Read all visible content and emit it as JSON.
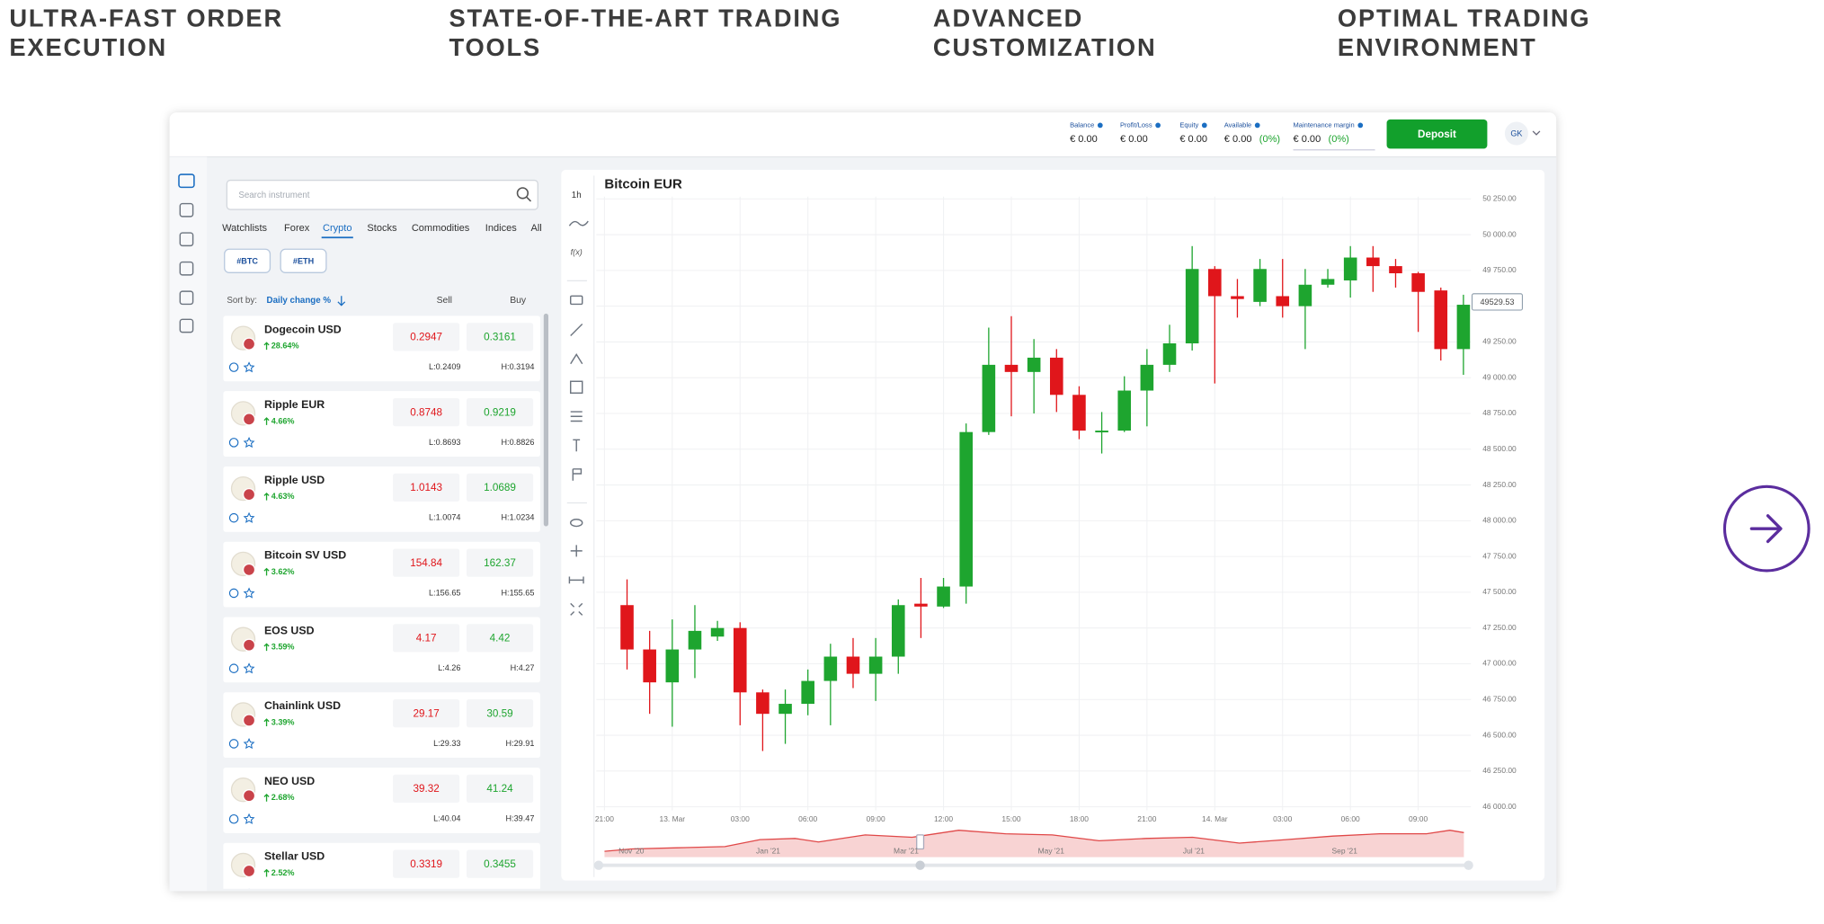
{
  "features": [
    {
      "lines": [
        "ULTRA-FAST ORDER",
        "EXECUTION"
      ]
    },
    {
      "lines": [
        "STATE-OF-THE-ART TRADING",
        "TOOLS"
      ]
    },
    {
      "lines": [
        "ADVANCED",
        "CUSTOMIZATION"
      ]
    },
    {
      "lines": [
        "OPTIMAL TRADING",
        "ENVIRONMENT"
      ]
    }
  ],
  "account": {
    "items": [
      {
        "label": "Balance",
        "value": "€ 0.00"
      },
      {
        "label": "Profit/Loss",
        "value": "€ 0.00"
      },
      {
        "label": "Equity",
        "value": "€ 0.00"
      },
      {
        "label": "Available",
        "value": "€ 0.00",
        "extra": "(0%)"
      },
      {
        "label": "Maintenance margin",
        "value": "€ 0.00",
        "extra": "(0%)"
      }
    ],
    "deposit": "Deposit",
    "user": "GK"
  },
  "instruments": {
    "search_placeholder": "Search instrument",
    "tabs": [
      "Watchlists",
      "Forex",
      "Crypto",
      "Stocks",
      "Commodities",
      "Indices",
      "All"
    ],
    "active_tab": 2,
    "tags": [
      "#BTC",
      "#ETH"
    ],
    "sort_label": "Sort by:",
    "sort_field": "Daily change %",
    "sell": "Sell",
    "buy": "Buy",
    "rows": [
      {
        "name": "Dogecoin USD",
        "change": "28.64%",
        "sell": "0.2947",
        "buy": "0.3161",
        "low": "L:0.2409",
        "high": "H:0.3194"
      },
      {
        "name": "Ripple EUR",
        "change": "4.66%",
        "sell": "0.8748",
        "buy": "0.9219",
        "low": "L:0.8693",
        "high": "H:0.8826"
      },
      {
        "name": "Ripple USD",
        "change": "4.63%",
        "sell": "1.0143",
        "buy": "1.0689",
        "low": "L:1.0074",
        "high": "H:1.0234"
      },
      {
        "name": "Bitcoin SV USD",
        "change": "3.62%",
        "sell": "154.84",
        "buy": "162.37",
        "low": "L:156.65",
        "high": "H:155.65"
      },
      {
        "name": "EOS USD",
        "change": "3.59%",
        "sell": "4.17",
        "buy": "4.42",
        "low": "L:4.26",
        "high": "H:4.27"
      },
      {
        "name": "Chainlink USD",
        "change": "3.39%",
        "sell": "29.17",
        "buy": "30.59",
        "low": "L:29.33",
        "high": "H:29.91"
      },
      {
        "name": "NEO USD",
        "change": "2.68%",
        "sell": "39.32",
        "buy": "41.24",
        "low": "L:40.04",
        "high": "H:39.47"
      },
      {
        "name": "Stellar USD",
        "change": "2.52%",
        "sell": "0.3319",
        "buy": "0.3455"
      }
    ]
  },
  "toolbar": {
    "interval": "1h",
    "functions": "f(x)"
  },
  "chart_data": {
    "type": "candlestick",
    "title": "Bitcoin EUR",
    "up_color": "#1ea52f",
    "down_color": "#e0161b",
    "grid": true,
    "x": [
      1,
      2,
      3,
      4,
      5,
      6,
      7,
      8,
      9,
      10,
      11,
      12,
      13,
      14,
      15,
      16,
      17,
      18,
      19,
      20,
      21,
      22,
      23,
      24,
      25,
      26,
      27,
      28,
      29,
      30,
      31,
      32,
      33,
      34,
      35,
      36,
      37,
      38
    ],
    "open": [
      47410,
      47100,
      46870,
      47100,
      47190,
      47250,
      46800,
      46650,
      46720,
      46880,
      47050,
      46930,
      47050,
      47420,
      47400,
      47540,
      48620,
      49090,
      49040,
      49140,
      48880,
      48620,
      48630,
      48910,
      49090,
      49240,
      49760,
      49570,
      49530,
      49570,
      49500,
      49650,
      49680,
      49840,
      49780,
      49730,
      49610,
      49200
    ],
    "high": [
      47590,
      47230,
      47310,
      47410,
      47300,
      47290,
      46820,
      46820,
      46960,
      47140,
      47180,
      47180,
      47450,
      47600,
      47600,
      48680,
      49350,
      49430,
      49270,
      49200,
      48940,
      48760,
      49010,
      49200,
      49370,
      49920,
      49780,
      49690,
      49830,
      49830,
      49760,
      49760,
      49920,
      49920,
      49830,
      49740,
      49630,
      49580
    ],
    "low": [
      46960,
      46650,
      46560,
      46900,
      47160,
      46570,
      46390,
      46440,
      46640,
      46570,
      46830,
      46740,
      46930,
      47180,
      47390,
      47420,
      48600,
      48730,
      48750,
      48760,
      48570,
      48470,
      48620,
      48660,
      49040,
      49190,
      48960,
      49420,
      49500,
      49420,
      49200,
      49630,
      49560,
      49600,
      49630,
      49320,
      49120,
      49020
    ],
    "close": [
      47100,
      46870,
      47100,
      47230,
      47250,
      46800,
      46650,
      46720,
      46880,
      47050,
      46930,
      47050,
      47410,
      47400,
      47540,
      48620,
      49090,
      49040,
      49140,
      48880,
      48630,
      48630,
      48910,
      49090,
      49240,
      49760,
      49570,
      49550,
      49760,
      49500,
      49650,
      49690,
      49840,
      49780,
      49730,
      49600,
      49200,
      49510
    ],
    "last_price": 49529.53,
    "xlim": [
      -0.36,
      38.33
    ],
    "xticks": [
      {
        "value": 0,
        "label": "21:00"
      },
      {
        "value": 3,
        "label": "13. Mar"
      },
      {
        "value": 6,
        "label": "03:00"
      },
      {
        "value": 9,
        "label": "06:00"
      },
      {
        "value": 12,
        "label": "09:00"
      },
      {
        "value": 15,
        "label": "12:00"
      },
      {
        "value": 18,
        "label": "15:00"
      },
      {
        "value": 21,
        "label": "18:00"
      },
      {
        "value": 24,
        "label": "21:00"
      },
      {
        "value": 27,
        "label": "14. Mar"
      },
      {
        "value": 30,
        "label": "03:00"
      },
      {
        "value": 33,
        "label": "06:00"
      },
      {
        "value": 36,
        "label": "09:00"
      }
    ],
    "ylim": [
      45975,
      50413
    ],
    "yticks": [
      {
        "value": 46000,
        "label": "46 000.00"
      },
      {
        "value": 46250,
        "label": "46 250.00"
      },
      {
        "value": 46500,
        "label": "46 500.00"
      },
      {
        "value": 46750,
        "label": "46 750.00"
      },
      {
        "value": 47000,
        "label": "47 000.00"
      },
      {
        "value": 47250,
        "label": "47 250.00"
      },
      {
        "value": 47500,
        "label": "47 500.00"
      },
      {
        "value": 47750,
        "label": "47 750.00"
      },
      {
        "value": 48000,
        "label": "48 000.00"
      },
      {
        "value": 48250,
        "label": "48 250.00"
      },
      {
        "value": 48500,
        "label": "48 500.00"
      },
      {
        "value": 48750,
        "label": "48 750.00"
      },
      {
        "value": 49000,
        "label": "49 000.00"
      },
      {
        "value": 49250,
        "label": "49 250.00"
      },
      {
        "value": 49500,
        "label": "49 500.00"
      },
      {
        "value": 49750,
        "label": "49 750.00"
      },
      {
        "value": 50000,
        "label": "50 000.00"
      },
      {
        "value": 50250,
        "label": "50 250.00"
      }
    ],
    "navigator_labels": [
      "Nov '20",
      "Jan '21",
      "Mar '21",
      "May '21",
      "Jul '21",
      "Sep '21"
    ]
  }
}
